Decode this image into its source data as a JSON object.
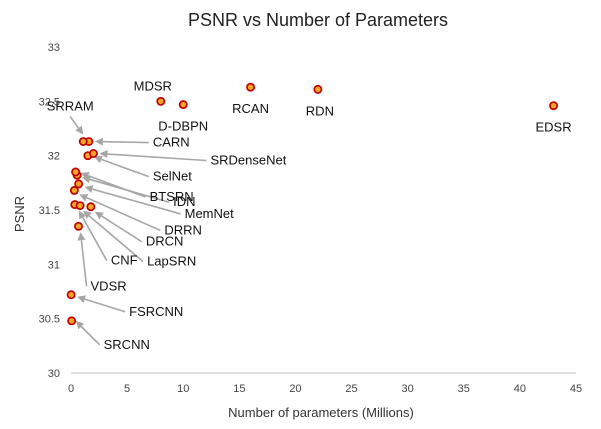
{
  "chart_data": {
    "type": "scatter",
    "title": "PSNR vs Number of Parameters",
    "xlabel": "Number of parameters (Millions)",
    "ylabel": "PSNR",
    "xlim": [
      0,
      45
    ],
    "ylim": [
      30,
      33
    ],
    "xticks": [
      0,
      5,
      10,
      15,
      20,
      25,
      30,
      35,
      40,
      45
    ],
    "yticks": [
      30,
      30.5,
      31,
      31.5,
      32,
      32.5,
      33
    ],
    "grid": false,
    "marker_fill": "#f5a623",
    "marker_edge": "#c00000",
    "arrow_color": "#a6a6a6",
    "points": [
      {
        "name": "SRCNN",
        "x": 0.057,
        "y": 30.48
      },
      {
        "name": "FSRCNN",
        "x": 0.012,
        "y": 30.72
      },
      {
        "name": "VDSR",
        "x": 0.67,
        "y": 31.35
      },
      {
        "name": "CNF",
        "x": 0.34,
        "y": 31.55
      },
      {
        "name": "LapSRN",
        "x": 0.81,
        "y": 31.54
      },
      {
        "name": "DRCN",
        "x": 1.77,
        "y": 31.53
      },
      {
        "name": "DRRN",
        "x": 0.3,
        "y": 31.68
      },
      {
        "name": "MemNet",
        "x": 0.68,
        "y": 31.74
      },
      {
        "name": "IDN",
        "x": 0.55,
        "y": 31.82
      },
      {
        "name": "BTSRN",
        "x": 0.41,
        "y": 31.85
      },
      {
        "name": "SelNet",
        "x": 1.5,
        "y": 32.0
      },
      {
        "name": "SRDenseNet",
        "x": 2.0,
        "y": 32.02
      },
      {
        "name": "CARN",
        "x": 1.59,
        "y": 32.13
      },
      {
        "name": "SRRAM",
        "x": 1.09,
        "y": 32.13
      },
      {
        "name": "D-DBPN",
        "x": 10.0,
        "y": 32.47
      },
      {
        "name": "MDSR",
        "x": 8.0,
        "y": 32.5
      },
      {
        "name": "RCAN",
        "x": 16.0,
        "y": 32.63
      },
      {
        "name": "RDN",
        "x": 22.0,
        "y": 32.61
      },
      {
        "name": "EDSR",
        "x": 43.0,
        "y": 32.46
      }
    ]
  }
}
